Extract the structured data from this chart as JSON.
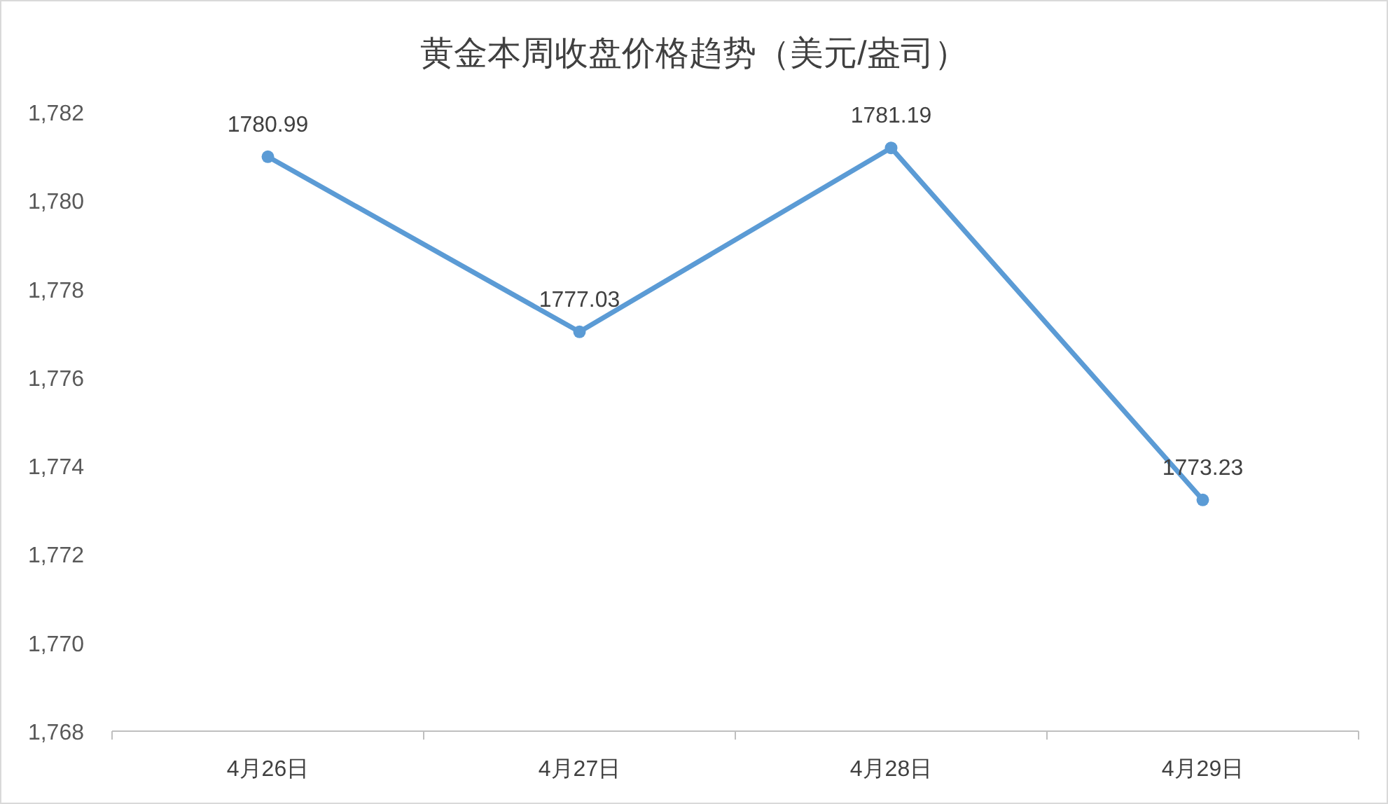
{
  "chart_data": {
    "type": "line",
    "title": "黄金本周收盘价格趋势（美元/盎司）",
    "categories": [
      "4月26日",
      "4月27日",
      "4月28日",
      "4月29日"
    ],
    "values": [
      1780.99,
      1777.03,
      1781.19,
      1773.23
    ],
    "color": "#5b9bd5",
    "marker": "circle",
    "data_labels": true,
    "ylim": [
      1768,
      1782
    ],
    "yticks": [
      {
        "value": 1768,
        "label": "1,768"
      },
      {
        "value": 1770,
        "label": "1,770"
      },
      {
        "value": 1772,
        "label": "1,772"
      },
      {
        "value": 1774,
        "label": "1,774"
      },
      {
        "value": 1776,
        "label": "1,776"
      },
      {
        "value": 1778,
        "label": "1,778"
      },
      {
        "value": 1780,
        "label": "1,780"
      },
      {
        "value": 1782,
        "label": "1,782"
      }
    ]
  }
}
